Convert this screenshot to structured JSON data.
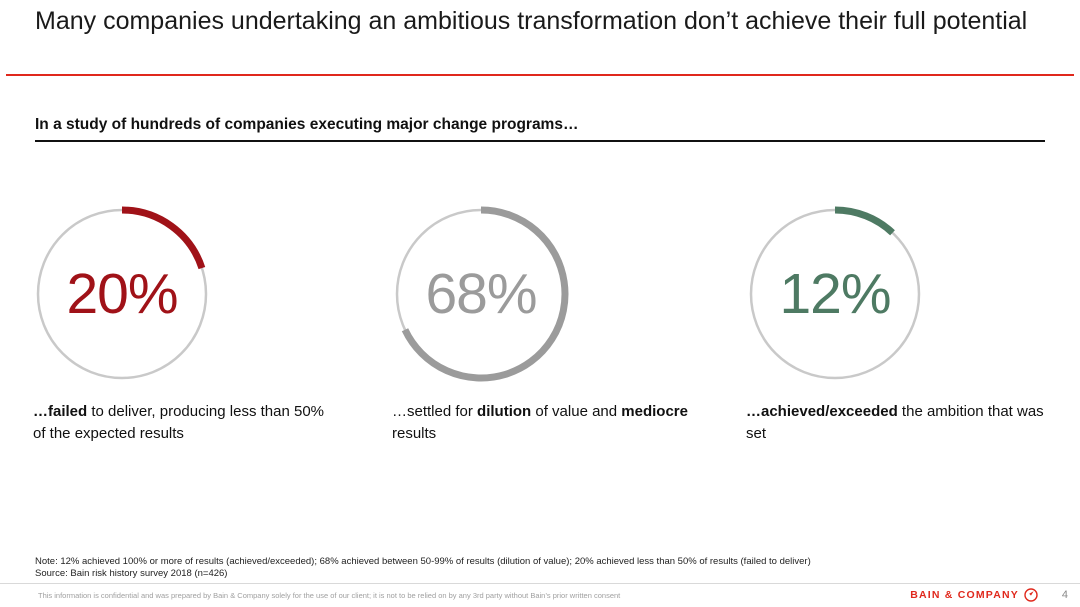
{
  "slide": {
    "title": "Many companies undertaking an ambitious transformation don’t achieve their full potential",
    "subtitle": "In a study of hundreds of companies executing major change programs…",
    "note": "Note: 12% achieved 100% or more of results (achieved/exceeded); 68% achieved between 50-99% of results (dilution of value); 20% achieved less than 50% of results (failed to deliver)",
    "source": "Source: Bain risk history survey 2018 (n=426)",
    "footer": {
      "disclaimer": "This information is confidential and was prepared by Bain & Company solely for the use of our client; it is not to be relied on by any 3rd party without Bain’s prior written consent",
      "brand": "BAIN & COMPANY",
      "page_number": "4"
    },
    "colors": {
      "accent_red": "#e0281c",
      "dark_red": "#a01218",
      "gray": "#9b9b9b",
      "green": "#4e7a63",
      "ring": "#c9c9c9",
      "brand_red": "#e0281c"
    }
  },
  "chart_data": {
    "type": "pie",
    "title": "In a study of hundreds of companies executing major change programs…",
    "categories": [
      "failed to deliver (less than 50% of expected results)",
      "settled for dilution of value and mediocre results (50-99% of results)",
      "achieved/exceeded the ambition that was set (100% or more of results)"
    ],
    "values": [
      20,
      68,
      12
    ],
    "legend_position": "none",
    "items": [
      {
        "display": "20%",
        "value": 20,
        "color": "#a01218",
        "caption": [
          {
            "t": "…failed",
            "b": 1
          },
          {
            "t": " to deliver, producing less than 50% of the expected results",
            "b": 0
          }
        ]
      },
      {
        "display": "68%",
        "value": 68,
        "color": "#9b9b9b",
        "caption": [
          {
            "t": "…settled for ",
            "b": 0
          },
          {
            "t": "dilution",
            "b": 1
          },
          {
            "t": " of value and ",
            "b": 0
          },
          {
            "t": "mediocre",
            "b": 1
          },
          {
            "t": " results",
            "b": 0
          }
        ]
      },
      {
        "display": "12%",
        "value": 12,
        "color": "#4e7a63",
        "caption": [
          {
            "t": "…achieved/exceeded",
            "b": 1
          },
          {
            "t": " the ambition that was set",
            "b": 0
          }
        ]
      }
    ]
  }
}
